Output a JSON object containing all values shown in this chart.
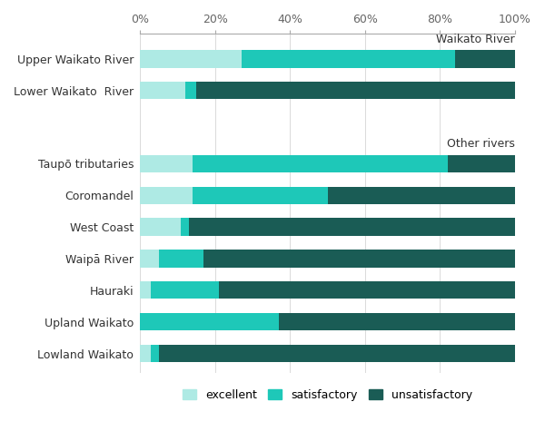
{
  "categories": [
    "Lowland Waikato",
    "Upland Waikato",
    "Hauraki",
    "Waipā River",
    "West Coast",
    "Coromandel",
    "Taupō tributaries",
    "Lower Waikato  River",
    "Upper Waikato River"
  ],
  "excellent": [
    3,
    0,
    3,
    5,
    11,
    14,
    14,
    12,
    27
  ],
  "satisfactory": [
    2,
    37,
    18,
    12,
    2,
    36,
    68,
    3,
    57
  ],
  "unsatisfactory": [
    95,
    63,
    79,
    83,
    87,
    50,
    18,
    85,
    16
  ],
  "color_excellent": "#aeeae4",
  "color_satisfactory": "#1ec8b8",
  "color_unsatisfactory": "#1a5c55",
  "group_label_waikato": "Waikato River",
  "group_label_other": "Other rivers",
  "waikato_bar_indices": [
    7,
    8
  ],
  "other_bar_indices": [
    0,
    1,
    2,
    3,
    4,
    5,
    6
  ],
  "gap_before_waikato": true,
  "gap_before_other": true,
  "legend_labels": [
    "excellent",
    "satisfactory",
    "unsatisfactory"
  ],
  "figsize": [
    6.0,
    4.86
  ],
  "dpi": 100,
  "bar_height": 0.55,
  "xlim": [
    0,
    100
  ],
  "xticks": [
    0,
    20,
    40,
    60,
    80,
    100
  ],
  "xticklabels": [
    "0%",
    "20%",
    "40%",
    "60%",
    "80%",
    "100%"
  ],
  "background_color": "#ffffff"
}
